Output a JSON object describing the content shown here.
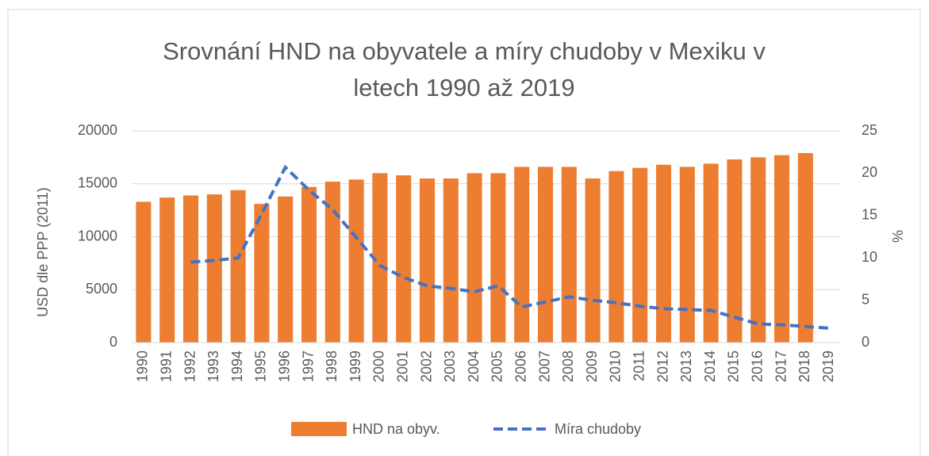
{
  "chart_data": {
    "type": "bar",
    "title": "Srovnání HND na obyvatele a míry chudoby v Mexiku v letech 1990 až 2019",
    "categories": [
      "1990",
      "1991",
      "1992",
      "1993",
      "1994",
      "1995",
      "1996",
      "1997",
      "1998",
      "1999",
      "2000",
      "2001",
      "2002",
      "2003",
      "2004",
      "2005",
      "2006",
      "2007",
      "2008",
      "2009",
      "2010",
      "2011",
      "2012",
      "2013",
      "2014",
      "2015",
      "2016",
      "2017",
      "2018",
      "2019"
    ],
    "series": [
      {
        "name": "HND na obyv.",
        "type": "bar",
        "axis": "y",
        "color": "#ed7d31",
        "values": [
          13300,
          13700,
          13900,
          14000,
          14400,
          13100,
          13800,
          14700,
          15200,
          15400,
          16000,
          15800,
          15500,
          15500,
          16000,
          16000,
          16600,
          16600,
          16600,
          15500,
          16200,
          16500,
          16800,
          16600,
          16900,
          17300,
          17500,
          17700,
          17900,
          null
        ]
      },
      {
        "name": "Míra chudoby",
        "type": "line",
        "axis": "y2",
        "color": "#4472c4",
        "values": [
          null,
          null,
          9.5,
          9.7,
          10,
          15.2,
          20.7,
          18,
          15.7,
          12.4,
          9.1,
          7.7,
          6.7,
          6.4,
          6,
          6.7,
          4.2,
          4.8,
          5.4,
          5,
          4.7,
          4.3,
          4,
          3.9,
          3.8,
          3,
          2.2,
          2.1,
          1.9,
          1.7
        ]
      }
    ],
    "ylabel": "USD dle PPP (2011)",
    "y2label": "%",
    "ylim": [
      0,
      20000
    ],
    "yticks": [
      0,
      5000,
      10000,
      15000,
      20000
    ],
    "y2lim": [
      0,
      25
    ],
    "y2ticks": [
      0,
      5,
      10,
      15,
      20,
      25
    ],
    "grid": true,
    "legend": "bottom"
  }
}
